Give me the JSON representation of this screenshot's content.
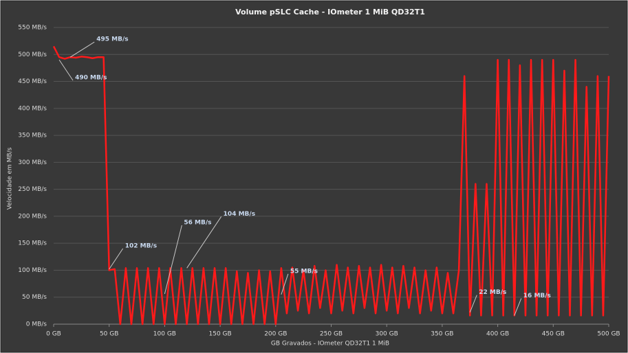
{
  "chart_data": {
    "type": "line",
    "title": "Volume pSLC Cache - IOmeter 1 MiB QD32T1",
    "xlabel": "GB Gravados - IOmeter QD32T1 1 MiB",
    "ylabel": "Velocidade em MB/s",
    "x": [
      0,
      5,
      10,
      15,
      20,
      25,
      30,
      35,
      40,
      45,
      50,
      55,
      60,
      65,
      70,
      75,
      80,
      85,
      90,
      95,
      100,
      105,
      110,
      115,
      120,
      125,
      130,
      135,
      140,
      145,
      150,
      155,
      160,
      165,
      170,
      175,
      180,
      185,
      190,
      195,
      200,
      205,
      210,
      215,
      220,
      225,
      230,
      235,
      240,
      245,
      250,
      255,
      260,
      265,
      270,
      275,
      280,
      285,
      290,
      295,
      300,
      305,
      310,
      315,
      320,
      325,
      330,
      335,
      340,
      345,
      350,
      355,
      360,
      365,
      370,
      375,
      380,
      385,
      390,
      395,
      400,
      405,
      410,
      415,
      420,
      425,
      430,
      435,
      440,
      445,
      450,
      455,
      460,
      465,
      470,
      475,
      480,
      485,
      490,
      495,
      500
    ],
    "series": [
      {
        "color": "#ff1a1a",
        "values": [
          515,
          495,
          492,
          495,
          494,
          496,
          495,
          493,
          495,
          495,
          100,
          102,
          0,
          104,
          0,
          104,
          0,
          104,
          0,
          104,
          0,
          104,
          0,
          104,
          0,
          104,
          0,
          104,
          0,
          104,
          0,
          104,
          0,
          98,
          0,
          95,
          0,
          100,
          0,
          98,
          0,
          104,
          20,
          105,
          25,
          100,
          20,
          108,
          30,
          100,
          20,
          110,
          25,
          105,
          20,
          108,
          30,
          105,
          20,
          110,
          25,
          105,
          20,
          108,
          30,
          105,
          20,
          100,
          25,
          105,
          20,
          95,
          20,
          100,
          460,
          16,
          260,
          16,
          260,
          16,
          490,
          16,
          490,
          16,
          480,
          16,
          490,
          16,
          490,
          16,
          490,
          16,
          470,
          16,
          490,
          16,
          440,
          16,
          460,
          16,
          460
        ]
      }
    ],
    "annotations": [
      {
        "text": "495 MB/s",
        "x": 15,
        "y": 495
      },
      {
        "text": "490 MB/s",
        "x": 5,
        "y": 490
      },
      {
        "text": "102 MB/s",
        "x": 50,
        "y": 102
      },
      {
        "text": "56 MB/s",
        "x": 100,
        "y": 56
      },
      {
        "text": "104 MB/s",
        "x": 120,
        "y": 104
      },
      {
        "text": "55 MB/s",
        "x": 205,
        "y": 55
      },
      {
        "text": "22 MB/s",
        "x": 375,
        "y": 22
      },
      {
        "text": "16 MB/s",
        "x": 415,
        "y": 16
      }
    ],
    "xlim": [
      0,
      500
    ],
    "xticks": [
      {
        "value": 0,
        "label": "0 GB"
      },
      {
        "value": 50,
        "label": "50 GB"
      },
      {
        "value": 100,
        "label": "100 GB"
      },
      {
        "value": 150,
        "label": "150 GB"
      },
      {
        "value": 200,
        "label": "200 GB"
      },
      {
        "value": 250,
        "label": "250 GB"
      },
      {
        "value": 300,
        "label": "300 GB"
      },
      {
        "value": 350,
        "label": "350 GB"
      },
      {
        "value": 400,
        "label": "400 GB"
      },
      {
        "value": 450,
        "label": "450 GB"
      },
      {
        "value": 500,
        "label": "500 GB"
      }
    ],
    "ylim": [
      0,
      550
    ],
    "yticks": [
      {
        "value": 0,
        "label": "0 MB/s"
      },
      {
        "value": 50,
        "label": "50 MB/s"
      },
      {
        "value": 100,
        "label": "100 MB/s"
      },
      {
        "value": 150,
        "label": "150 MB/s"
      },
      {
        "value": 200,
        "label": "200 MB/s"
      },
      {
        "value": 250,
        "label": "250 MB/s"
      },
      {
        "value": 300,
        "label": "300 MB/s"
      },
      {
        "value": 350,
        "label": "350 MB/s"
      },
      {
        "value": 400,
        "label": "400 MB/s"
      },
      {
        "value": 450,
        "label": "450 MB/s"
      },
      {
        "value": 500,
        "label": "500 MB/s"
      },
      {
        "value": 550,
        "label": "550 MB/s"
      }
    ],
    "grid": true
  }
}
